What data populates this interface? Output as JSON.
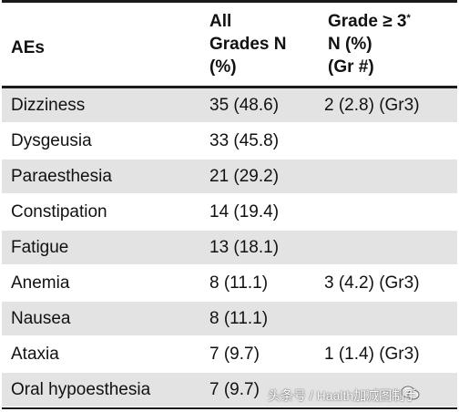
{
  "header": {
    "aes": "AEs",
    "all_grades_lines": [
      "All",
      "Grades N",
      "(%)"
    ],
    "grade3_line1": "Grade ≥ 3",
    "grade3_mark": "*",
    "grade3_line2": "N (%)",
    "grade3_line3": "(Gr #)"
  },
  "rows": [
    {
      "ae": "Dizziness",
      "all": "35 (48.6)",
      "g3": "2 (2.8) (Gr3)"
    },
    {
      "ae": "Dysgeusia",
      "all": "33 (45.8)",
      "g3": ""
    },
    {
      "ae": "Paraesthesia",
      "all": "21 (29.2)",
      "g3": ""
    },
    {
      "ae": "Constipation",
      "all": "14 (19.4)",
      "g3": ""
    },
    {
      "ae": "Fatigue",
      "all": "13 (18.1)",
      "g3": ""
    },
    {
      "ae": "Anemia",
      "all": "8 (11.1)",
      "g3": "3 (4.2) (Gr3)"
    },
    {
      "ae": "Nausea",
      "all": "8 (11.1)",
      "g3": ""
    },
    {
      "ae": "Ataxia",
      "all": "7 (9.7)",
      "g3": "1 (1.4) (Gr3)"
    },
    {
      "ae": "Oral hypoesthesia",
      "all": "7 (9.7)",
      "g3": ""
    }
  ],
  "watermark": "头条号 / Haalth加减图制手",
  "colors": {
    "shade": "#e3e3e3",
    "rule": "#1a1a1a"
  }
}
